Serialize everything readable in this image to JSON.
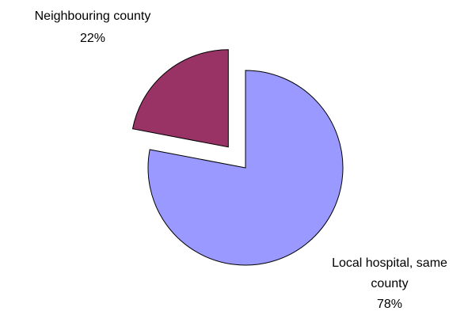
{
  "chart_data": {
    "type": "pie",
    "title": "",
    "slices": [
      {
        "label_lines": [
          "Local hospital, same",
          "county"
        ],
        "percent_label": "78%",
        "value": 78,
        "color": "#9999ff",
        "exploded": false
      },
      {
        "label_lines": [
          "Neighbouring county"
        ],
        "percent_label": "22%",
        "value": 22,
        "color": "#993366",
        "exploded": true
      }
    ],
    "legend": "none"
  }
}
